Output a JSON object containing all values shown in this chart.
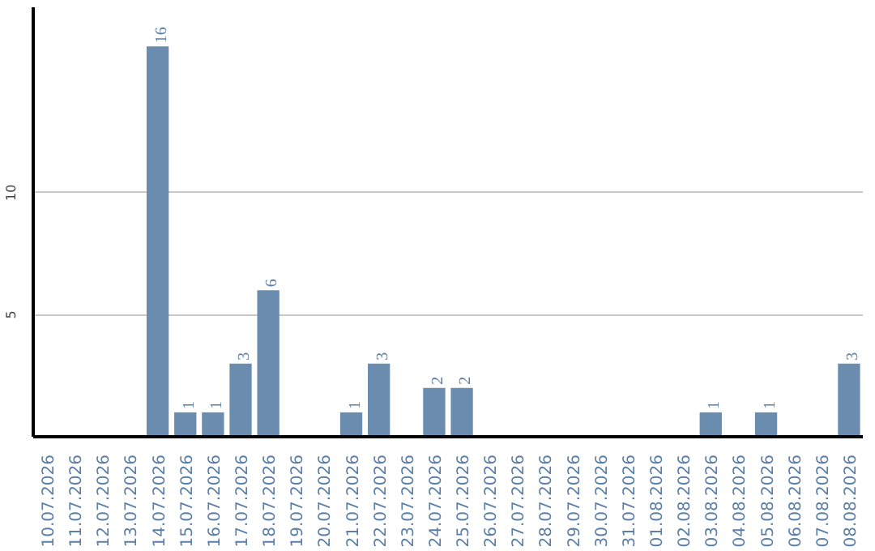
{
  "chart_data": {
    "type": "bar",
    "categories": [
      "10.07.2026",
      "11.07.2026",
      "12.07.2026",
      "13.07.2026",
      "14.07.2026",
      "15.07.2026",
      "16.07.2026",
      "17.07.2026",
      "18.07.2026",
      "19.07.2026",
      "20.07.2026",
      "21.07.2026",
      "22.07.2026",
      "23.07.2026",
      "24.07.2026",
      "25.07.2026",
      "26.07.2026",
      "27.07.2026",
      "28.07.2026",
      "29.07.2026",
      "30.07.2026",
      "31.07.2026",
      "01.08.2026",
      "02.08.2026",
      "03.08.2026",
      "04.08.2026",
      "05.08.2026",
      "06.08.2026",
      "07.08.2026",
      "08.08.2026"
    ],
    "values": [
      0,
      0,
      0,
      0,
      16,
      1,
      1,
      3,
      6,
      0,
      0,
      1,
      3,
      0,
      2,
      2,
      0,
      0,
      0,
      0,
      0,
      0,
      0,
      0,
      1,
      0,
      1,
      0,
      0,
      3
    ],
    "value_labels": [
      null,
      null,
      null,
      null,
      "16",
      "1",
      "1",
      "3",
      "6",
      null,
      null,
      "1",
      "3",
      null,
      "2",
      "2",
      null,
      null,
      null,
      null,
      null,
      null,
      null,
      null,
      "1",
      null,
      "1",
      null,
      null,
      "3"
    ],
    "color": "#6a8caf",
    "ylim": [
      0,
      17.6
    ],
    "yticks": [
      5,
      10
    ],
    "grid": "y"
  }
}
